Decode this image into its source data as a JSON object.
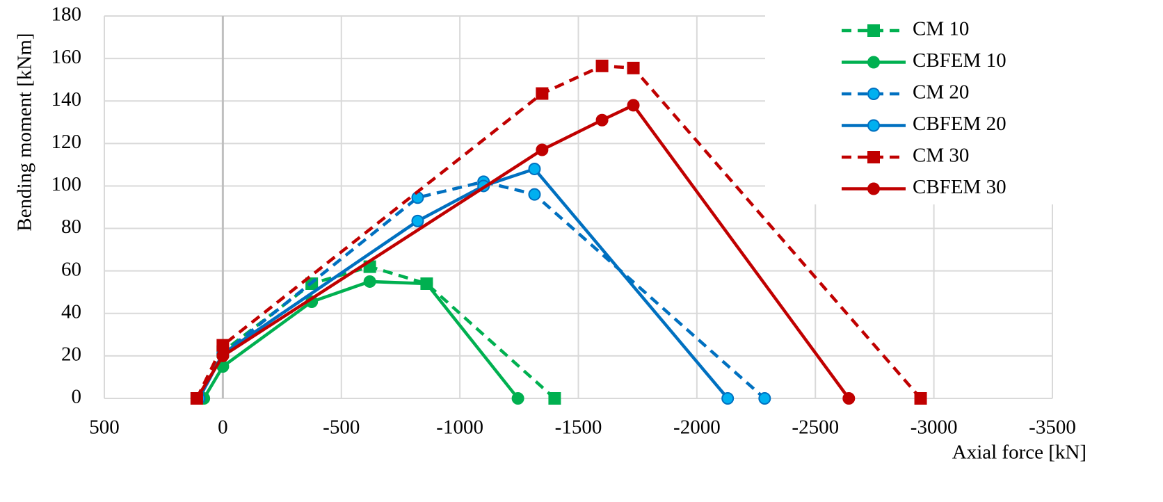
{
  "chart_data": {
    "type": "line",
    "x_label": "Axial force [kN]",
    "y_label": "Bending moment [kNm]",
    "xlim": [
      500,
      -3500
    ],
    "xticks": [
      500,
      0,
      -500,
      -1000,
      -1500,
      -2000,
      -2500,
      -3000,
      -3500
    ],
    "ylim": [
      0,
      180
    ],
    "yticks": [
      0,
      20,
      40,
      60,
      80,
      100,
      120,
      140,
      160,
      180
    ],
    "grid": true,
    "legend": "top-right",
    "series": [
      {
        "name": "CM 10",
        "color": "#00b050",
        "marker_fill": "#00b050",
        "marker": "square",
        "dashed": true,
        "x": [
          110,
          0,
          -375,
          -620,
          -860,
          -1400
        ],
        "values": [
          0,
          22,
          54,
          62,
          54,
          0
        ]
      },
      {
        "name": "CBFEM 10",
        "color": "#00b050",
        "marker_fill": "#00b050",
        "marker": "circle",
        "dashed": false,
        "x": [
          80,
          0,
          -375,
          -620,
          -860,
          -1245
        ],
        "values": [
          0,
          15,
          45.5,
          55,
          54,
          0
        ]
      },
      {
        "name": "CM 20",
        "color": "#0070c0",
        "marker_fill": "#00b0f0",
        "marker": "circle",
        "dashed": true,
        "x": [
          100,
          0,
          -822,
          -1100,
          -1315,
          -2286
        ],
        "values": [
          0,
          21,
          94.5,
          102,
          96,
          0
        ]
      },
      {
        "name": "CBFEM 20",
        "color": "#0070c0",
        "marker_fill": "#00b0f0",
        "marker": "circle",
        "dashed": false,
        "x": [
          100,
          0,
          -822,
          -1100,
          -1315,
          -2130
        ],
        "values": [
          0,
          21,
          83.5,
          100,
          108,
          0
        ]
      },
      {
        "name": "CM 30",
        "color": "#c00000",
        "marker_fill": "#c00000",
        "marker": "square",
        "dashed": true,
        "x": [
          110,
          0,
          -1347,
          -1600,
          -1732,
          -2944
        ],
        "values": [
          0,
          25,
          143.5,
          156.5,
          155.5,
          0
        ]
      },
      {
        "name": "CBFEM 30",
        "color": "#c00000",
        "marker_fill": "#c00000",
        "marker": "circle",
        "dashed": false,
        "x": [
          110,
          0,
          -1347,
          -1600,
          -1732,
          -2641
        ],
        "values": [
          0,
          20,
          117,
          131,
          138,
          0
        ]
      }
    ]
  }
}
